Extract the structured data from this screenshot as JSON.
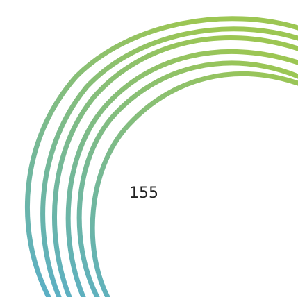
{
  "page": {
    "number": "155"
  },
  "decoration": {
    "icon": "swirl-arcs-decoration",
    "gradient_top": "#9CC653",
    "gradient_bottom": "#5AAFC6"
  }
}
